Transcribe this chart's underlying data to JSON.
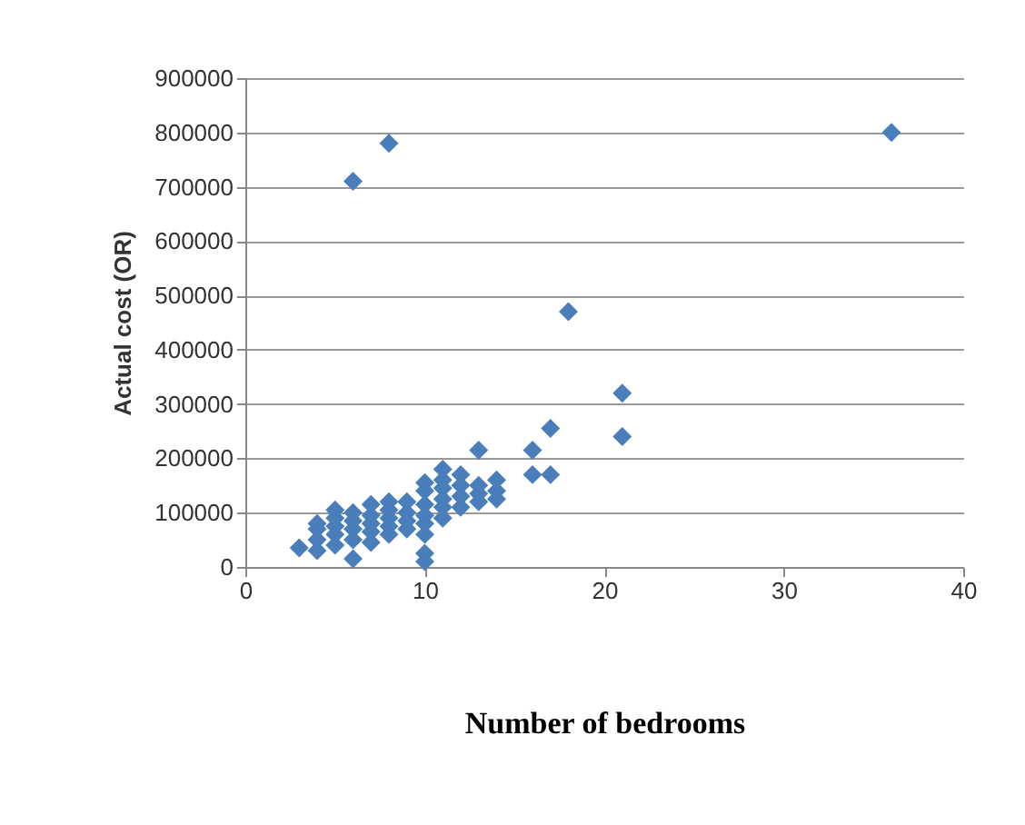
{
  "chart_data": {
    "type": "scatter",
    "xlabel": "Number of bedrooms",
    "ylabel": "Actual cost  (OR)",
    "x": [
      3,
      4,
      4,
      4,
      4,
      5,
      5,
      5,
      5,
      5,
      6,
      6,
      6,
      6,
      6,
      6,
      7,
      7,
      7,
      7,
      7,
      8,
      8,
      8,
      8,
      8,
      8,
      9,
      9,
      9,
      9,
      10,
      10,
      10,
      10,
      10,
      10,
      10,
      10,
      11,
      11,
      11,
      11,
      11,
      11,
      12,
      12,
      12,
      12,
      13,
      13,
      13,
      13,
      14,
      14,
      14,
      16,
      16,
      17,
      17,
      18,
      21,
      21,
      36
    ],
    "series": [
      {
        "color": "#4a7ebb",
        "values": [
          35000,
          30000,
          50000,
          70000,
          80000,
          40000,
          60000,
          90000,
          105000,
          75000,
          15000,
          50000,
          70000,
          85000,
          100000,
          710000,
          45000,
          65000,
          80000,
          95000,
          115000,
          60000,
          75000,
          90000,
          105000,
          120000,
          780000,
          70000,
          85000,
          100000,
          120000,
          10000,
          25000,
          60000,
          80000,
          95000,
          115000,
          140000,
          155000,
          90000,
          110000,
          125000,
          145000,
          160000,
          180000,
          110000,
          130000,
          150000,
          170000,
          120000,
          135000,
          150000,
          215000,
          125000,
          140000,
          160000,
          170000,
          215000,
          170000,
          255000,
          470000,
          240000,
          320000,
          800000
        ]
      }
    ],
    "xlim": [
      0,
      40
    ],
    "xticks": [
      0,
      10,
      20,
      30,
      40
    ],
    "ylim": [
      0,
      900000
    ],
    "yticks": [
      0,
      100000,
      200000,
      300000,
      400000,
      500000,
      600000,
      700000,
      800000,
      900000
    ],
    "grid": "y",
    "marker": "diamond"
  }
}
